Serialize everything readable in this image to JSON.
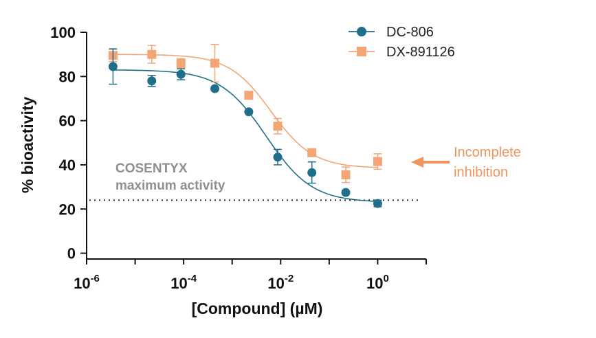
{
  "colors": {
    "series1": "#1f6e8a",
    "series2": "#f4a576",
    "annotation": "#f0935c",
    "threshold_text": "#8f8f8f",
    "axis": "#111111"
  },
  "chart_data": {
    "type": "scatter",
    "title": "",
    "xlabel": "[Compound] (µM)",
    "ylabel": "% bioactivity",
    "xscale": "log",
    "xlim": [
      1e-06,
      10
    ],
    "ylim": [
      -2,
      100
    ],
    "x_ticks": [
      {
        "value": 1e-06,
        "base": "10",
        "exp": "-6"
      },
      {
        "value": 0.0001,
        "base": "10",
        "exp": "-4"
      },
      {
        "value": 0.01,
        "base": "10",
        "exp": "-2"
      },
      {
        "value": 1,
        "base": "10",
        "exp": "0"
      }
    ],
    "y_ticks": [
      0,
      20,
      40,
      60,
      80,
      100
    ],
    "legend_position": "top-right",
    "series": [
      {
        "name": "DC-806",
        "marker": "circle",
        "color": "#1f6e8a",
        "x": [
          3.5e-06,
          2.2e-05,
          8.8e-05,
          0.00044,
          0.0022,
          0.0087,
          0.044,
          0.22,
          1.0
        ],
        "y": [
          84.5,
          78,
          81,
          74.5,
          64,
          43.5,
          36.5,
          27.5,
          22.5
        ],
        "err": [
          8,
          2.5,
          2.5,
          0,
          0,
          3.5,
          4.8,
          0,
          1.5
        ],
        "fit": {
          "top": 83,
          "bottom": 23,
          "log_ec50": -2.3,
          "hill": 0.92
        }
      },
      {
        "name": "DX-891126",
        "marker": "square",
        "color": "#f4a576",
        "x": [
          3.5e-06,
          2.2e-05,
          8.8e-05,
          0.00044,
          0.0022,
          0.0087,
          0.044,
          0.22,
          1.0
        ],
        "y": [
          89.5,
          90,
          86,
          86,
          71.5,
          57.5,
          45.5,
          35.5,
          41.5
        ],
        "err": [
          2.8,
          4,
          2,
          8.5,
          0,
          3.5,
          0,
          3.5,
          3.5
        ],
        "fit": {
          "top": 90,
          "bottom": 38.5,
          "log_ec50": -2.2,
          "hill": 1.0
        }
      }
    ],
    "reference_line": {
      "y": 24,
      "style": "dotted",
      "label_line1": "COSENTYX",
      "label_line2": "maximum activity"
    },
    "annotation": {
      "text_line1": "Incomplete",
      "text_line2": "inhibition"
    }
  }
}
